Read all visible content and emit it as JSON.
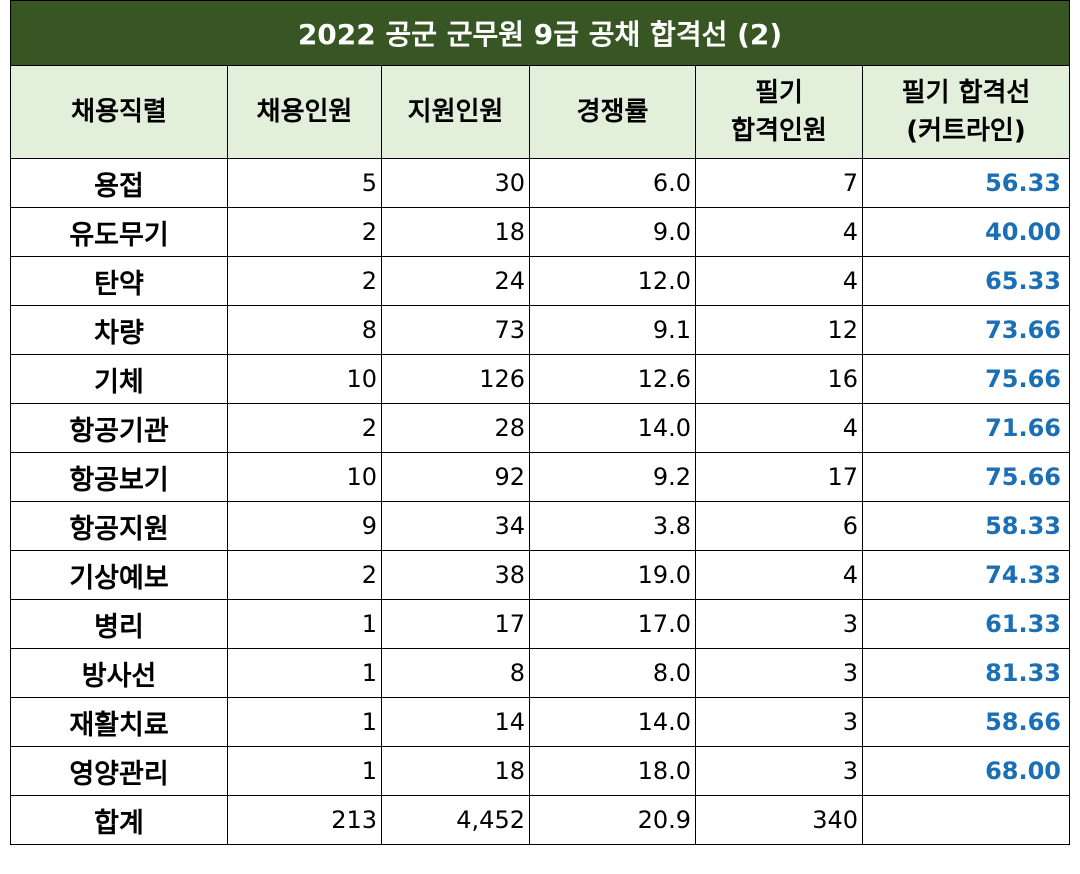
{
  "title": "2022 공군 군무원 9급 공채  합격선 (2)",
  "headers": [
    "채용직렬",
    "채용인원",
    "지원인원",
    "경쟁률",
    "필기\n합격인원",
    "필기 합격선\n(커트라인)"
  ],
  "rows": [
    {
      "name": "용접",
      "hire": "5",
      "apply": "30",
      "ratio": "6.0",
      "pass": "7",
      "cutoff": "56.33"
    },
    {
      "name": "유도무기",
      "hire": "2",
      "apply": "18",
      "ratio": "9.0",
      "pass": "4",
      "cutoff": "40.00"
    },
    {
      "name": "탄약",
      "hire": "2",
      "apply": "24",
      "ratio": "12.0",
      "pass": "4",
      "cutoff": "65.33"
    },
    {
      "name": "차량",
      "hire": "8",
      "apply": "73",
      "ratio": "9.1",
      "pass": "12",
      "cutoff": "73.66"
    },
    {
      "name": "기체",
      "hire": "10",
      "apply": "126",
      "ratio": "12.6",
      "pass": "16",
      "cutoff": "75.66"
    },
    {
      "name": "항공기관",
      "hire": "2",
      "apply": "28",
      "ratio": "14.0",
      "pass": "4",
      "cutoff": "71.66"
    },
    {
      "name": "항공보기",
      "hire": "10",
      "apply": "92",
      "ratio": "9.2",
      "pass": "17",
      "cutoff": "75.66"
    },
    {
      "name": "항공지원",
      "hire": "9",
      "apply": "34",
      "ratio": "3.8",
      "pass": "6",
      "cutoff": "58.33"
    },
    {
      "name": "기상예보",
      "hire": "2",
      "apply": "38",
      "ratio": "19.0",
      "pass": "4",
      "cutoff": "74.33"
    },
    {
      "name": "병리",
      "hire": "1",
      "apply": "17",
      "ratio": "17.0",
      "pass": "3",
      "cutoff": "61.33"
    },
    {
      "name": "방사선",
      "hire": "1",
      "apply": "8",
      "ratio": "8.0",
      "pass": "3",
      "cutoff": "81.33"
    },
    {
      "name": "재활치료",
      "hire": "1",
      "apply": "14",
      "ratio": "14.0",
      "pass": "3",
      "cutoff": "58.66"
    },
    {
      "name": "영양관리",
      "hire": "1",
      "apply": "18",
      "ratio": "18.0",
      "pass": "3",
      "cutoff": "68.00"
    },
    {
      "name": "합계",
      "hire": "213",
      "apply": "4,452",
      "ratio": "20.9",
      "pass": "340",
      "cutoff": ""
    }
  ],
  "colors": {
    "title_bg": "#375623",
    "header_bg": "#e2efda",
    "cutoff_text": "#1a6fb5"
  }
}
